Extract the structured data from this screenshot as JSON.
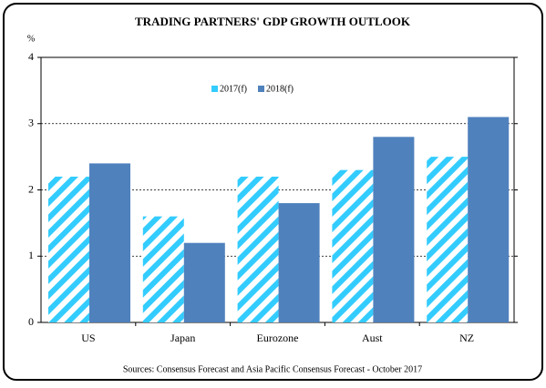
{
  "chart_data": {
    "type": "bar",
    "title": "TRADING PARTNERS' GDP GROWTH OUTLOOK",
    "y_label": "%",
    "categories": [
      "US",
      "Japan",
      "Eurozone",
      "Aust",
      "NZ"
    ],
    "series": [
      {
        "name": "2017(f)",
        "color": "#33ccff",
        "pattern": "hatch",
        "values": [
          2.2,
          1.6,
          2.2,
          2.3,
          2.5
        ]
      },
      {
        "name": "2018(f)",
        "color": "#4f81bd",
        "values": [
          2.4,
          1.2,
          1.8,
          2.8,
          3.1
        ]
      }
    ],
    "ylim": [
      0,
      4
    ],
    "yticks": [
      0,
      1,
      2,
      3,
      4
    ],
    "grid": true,
    "source": "Sources:  Consensus Forecast and Asia Pacific Consensus Forecast - October 2017"
  }
}
